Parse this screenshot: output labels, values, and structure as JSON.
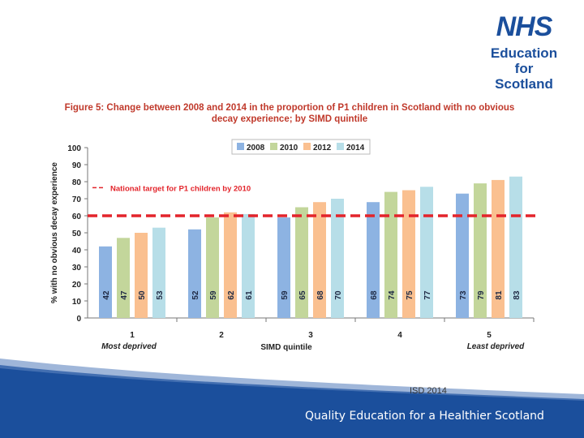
{
  "logo": {
    "nhs": "NHS",
    "line1": "Education",
    "line2": "for",
    "line3": "Scotland"
  },
  "figure_title_line1": "Figure 5: Change between 2008 and 2014 in the proportion of P1 children in Scotland with no obvious",
  "figure_title_line2": "decay experience; by SIMD quintile",
  "source": "ISD 2014",
  "tagline": "Quality Education for a Healthier Scotland",
  "colors": {
    "2008": "#8db3e2",
    "2010": "#c3d69b",
    "2012": "#fac090",
    "2014": "#b7dee8",
    "target": "#e3242b",
    "title": "#c0392b"
  },
  "chart_data": {
    "type": "bar",
    "categories": [
      "1",
      "2",
      "3",
      "4",
      "5"
    ],
    "category_sublabels": [
      "Most deprived",
      "",
      "",
      "",
      "Least deprived"
    ],
    "series": [
      {
        "name": "2008",
        "values": [
          42,
          52,
          59,
          68,
          73
        ]
      },
      {
        "name": "2010",
        "values": [
          47,
          59,
          65,
          74,
          79
        ]
      },
      {
        "name": "2012",
        "values": [
          50,
          62,
          68,
          75,
          81
        ]
      },
      {
        "name": "2014",
        "values": [
          53,
          61,
          70,
          77,
          83
        ]
      }
    ],
    "xlabel": "SIMD quintile",
    "ylabel": "% with no obvious decay experience",
    "ylim": [
      0,
      100
    ],
    "yticks": [
      0,
      10,
      20,
      30,
      40,
      50,
      60,
      70,
      80,
      90,
      100
    ],
    "target": {
      "label": "National target for P1 children by 2010",
      "value": 60
    },
    "legend_position": "top-center",
    "grid": false
  }
}
